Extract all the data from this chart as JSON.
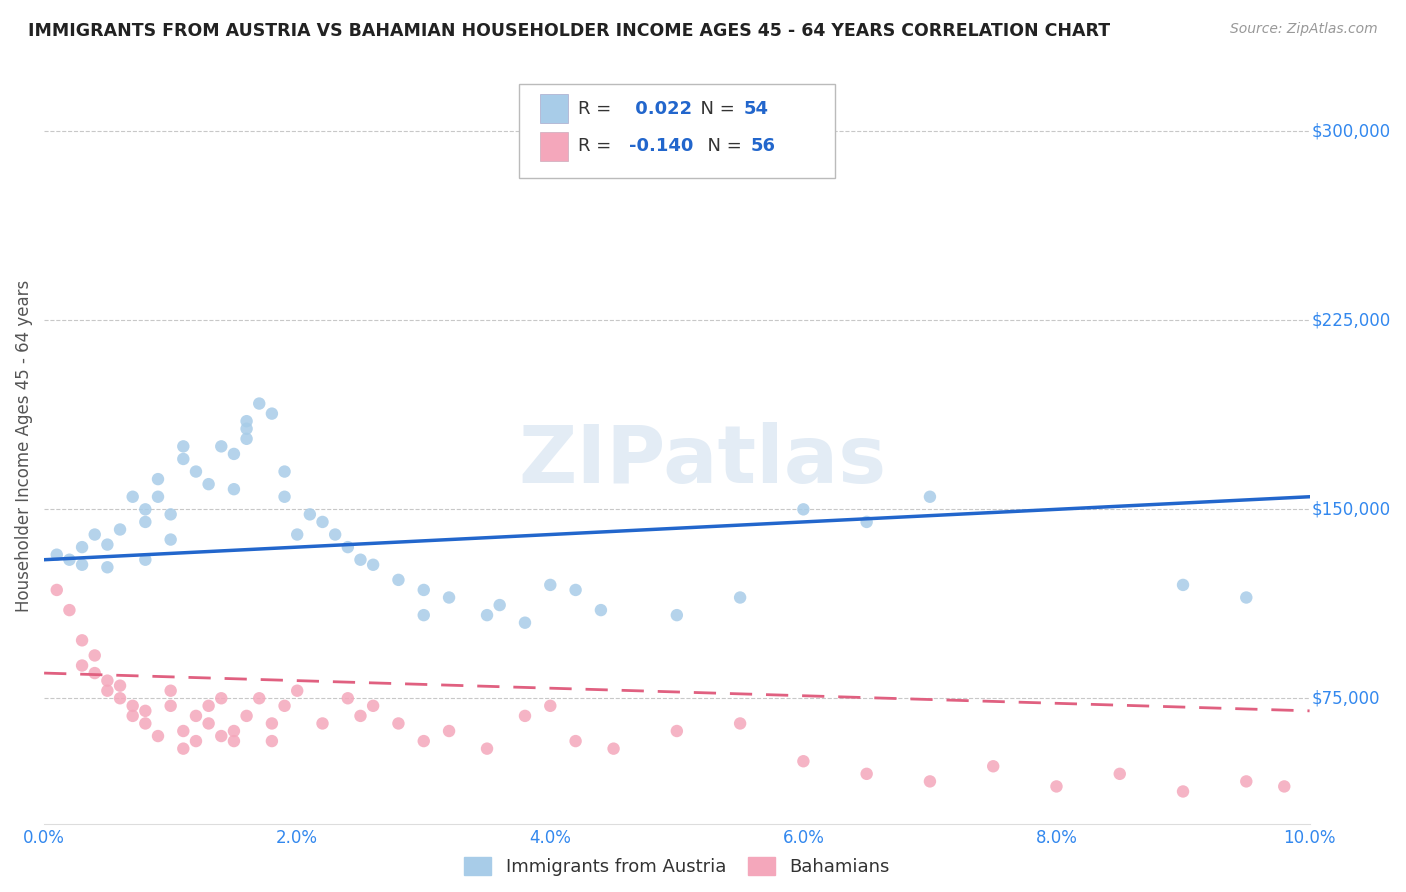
{
  "title": "IMMIGRANTS FROM AUSTRIA VS BAHAMIAN HOUSEHOLDER INCOME AGES 45 - 64 YEARS CORRELATION CHART",
  "source": "Source: ZipAtlas.com",
  "ylabel": "Householder Income Ages 45 - 64 years",
  "xlim": [
    0.0,
    0.1
  ],
  "ylim": [
    25000,
    325000
  ],
  "yticks": [
    75000,
    150000,
    225000,
    300000
  ],
  "xticks": [
    0.0,
    0.02,
    0.04,
    0.06,
    0.08,
    0.1
  ],
  "xtick_labels": [
    "0.0%",
    "2.0%",
    "4.0%",
    "6.0%",
    "8.0%",
    "10.0%"
  ],
  "ytick_labels": [
    "$75,000",
    "$150,000",
    "$225,000",
    "$300,000"
  ],
  "blue_R": 0.022,
  "blue_N": 54,
  "pink_R": -0.14,
  "pink_N": 56,
  "blue_color": "#a8cce8",
  "pink_color": "#f4a7bb",
  "blue_line_color": "#2266cc",
  "pink_line_color": "#e06080",
  "background_color": "#ffffff",
  "grid_color": "#c8c8c8",
  "watermark": "ZIPatlas",
  "title_color": "#222222",
  "axis_label_color": "#555555",
  "tick_color": "#3388ee",
  "blue_scatter_x": [
    0.001,
    0.002,
    0.003,
    0.003,
    0.004,
    0.005,
    0.005,
    0.006,
    0.007,
    0.008,
    0.008,
    0.008,
    0.009,
    0.009,
    0.01,
    0.01,
    0.011,
    0.011,
    0.012,
    0.013,
    0.014,
    0.015,
    0.015,
    0.016,
    0.016,
    0.016,
    0.017,
    0.018,
    0.019,
    0.019,
    0.02,
    0.021,
    0.022,
    0.023,
    0.024,
    0.025,
    0.026,
    0.028,
    0.03,
    0.03,
    0.032,
    0.035,
    0.036,
    0.038,
    0.04,
    0.042,
    0.044,
    0.05,
    0.055,
    0.06,
    0.065,
    0.07,
    0.09,
    0.095
  ],
  "blue_scatter_y": [
    132000,
    130000,
    128000,
    135000,
    140000,
    127000,
    136000,
    142000,
    155000,
    130000,
    145000,
    150000,
    162000,
    155000,
    148000,
    138000,
    170000,
    175000,
    165000,
    160000,
    175000,
    172000,
    158000,
    185000,
    178000,
    182000,
    192000,
    188000,
    165000,
    155000,
    140000,
    148000,
    145000,
    140000,
    135000,
    130000,
    128000,
    122000,
    118000,
    108000,
    115000,
    108000,
    112000,
    105000,
    120000,
    118000,
    110000,
    108000,
    115000,
    150000,
    145000,
    155000,
    120000,
    115000
  ],
  "pink_scatter_x": [
    0.001,
    0.002,
    0.003,
    0.003,
    0.004,
    0.004,
    0.005,
    0.005,
    0.006,
    0.006,
    0.007,
    0.007,
    0.008,
    0.008,
    0.009,
    0.01,
    0.01,
    0.011,
    0.011,
    0.012,
    0.012,
    0.013,
    0.013,
    0.014,
    0.014,
    0.015,
    0.015,
    0.016,
    0.017,
    0.018,
    0.018,
    0.019,
    0.02,
    0.022,
    0.024,
    0.025,
    0.026,
    0.028,
    0.03,
    0.032,
    0.035,
    0.038,
    0.04,
    0.042,
    0.045,
    0.05,
    0.055,
    0.06,
    0.065,
    0.07,
    0.075,
    0.08,
    0.085,
    0.09,
    0.095,
    0.098
  ],
  "pink_scatter_y": [
    118000,
    110000,
    88000,
    98000,
    85000,
    92000,
    82000,
    78000,
    75000,
    80000,
    68000,
    72000,
    65000,
    70000,
    60000,
    72000,
    78000,
    55000,
    62000,
    68000,
    58000,
    72000,
    65000,
    60000,
    75000,
    58000,
    62000,
    68000,
    75000,
    65000,
    58000,
    72000,
    78000,
    65000,
    75000,
    68000,
    72000,
    65000,
    58000,
    62000,
    55000,
    68000,
    72000,
    58000,
    55000,
    62000,
    65000,
    50000,
    45000,
    42000,
    48000,
    40000,
    45000,
    38000,
    42000,
    40000
  ],
  "blue_line_x0": 0.0,
  "blue_line_y0": 130000,
  "blue_line_x1": 0.1,
  "blue_line_y1": 155000,
  "pink_line_x0": 0.0,
  "pink_line_y0": 85000,
  "pink_line_x1": 0.1,
  "pink_line_y1": 70000
}
